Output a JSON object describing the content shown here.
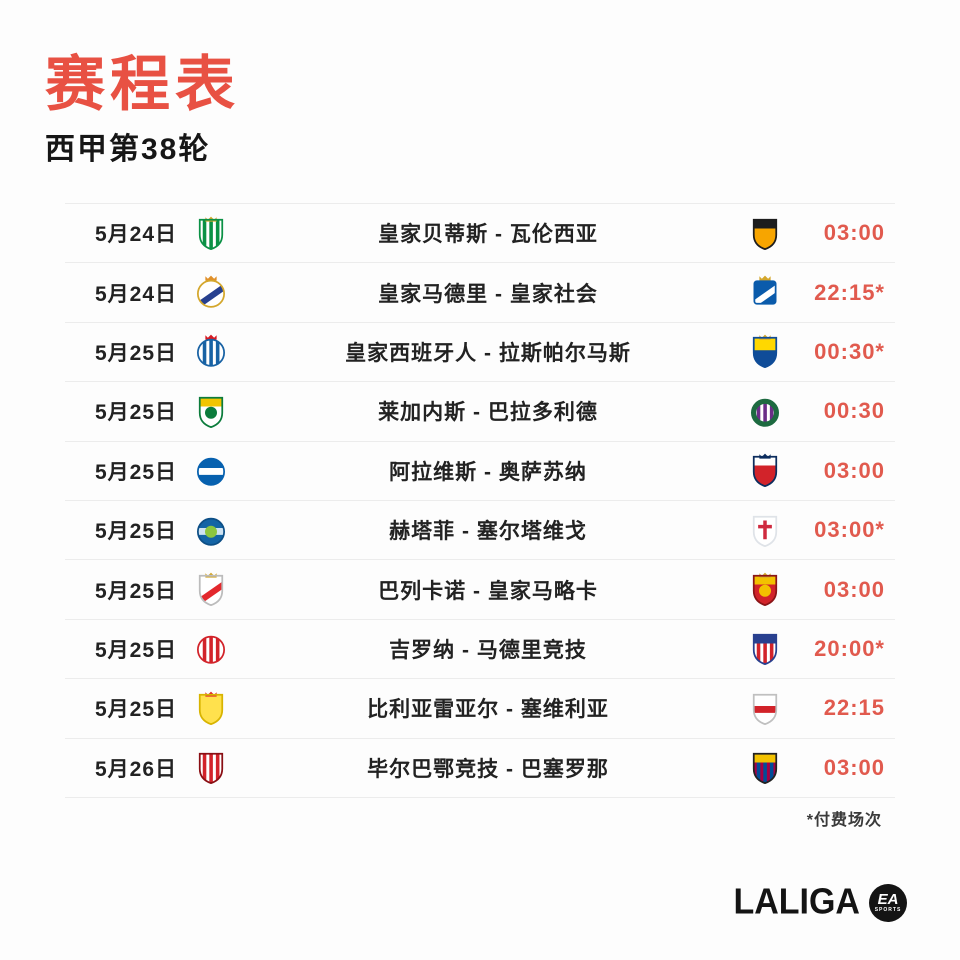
{
  "page": {
    "title": "赛程表",
    "subtitle": "西甲第38轮",
    "footnote": "*付费场次",
    "brand": {
      "laliga": "LALIGA",
      "ea_top": "EA",
      "ea_bottom": "SPORTS"
    },
    "colors": {
      "background": "#fdfdfd",
      "accent_red": "#e85143",
      "time_red": "#e15a4e",
      "text_dark": "#222222",
      "divider": "#ececec"
    }
  },
  "matches": [
    {
      "date": "5月24日",
      "fixture": "皇家贝蒂斯 - 瓦伦西亚",
      "time": "03:00",
      "home_crest": {
        "name": "real-betis-crest",
        "base": "shield",
        "base_color": "#ffffff",
        "border": "#0b9145",
        "layers": [
          [
            "vstripes",
            "#0b9145"
          ],
          [
            "crown",
            "#d4a72c"
          ]
        ]
      },
      "away_crest": {
        "name": "valencia-crest",
        "base": "shield",
        "base_color": "#f7a500",
        "border": "#1d1d1d",
        "layers": [
          [
            "chief",
            "#1d1d1d"
          ]
        ]
      }
    },
    {
      "date": "5月24日",
      "fixture": "皇家马德里 - 皇家社会",
      "time": "22:15*",
      "home_crest": {
        "name": "real-madrid-crest",
        "base": "circle",
        "base_color": "#ffffff",
        "border": "#d4a72c",
        "layers": [
          [
            "diag",
            "#27408f"
          ],
          [
            "crown",
            "#e0902a"
          ]
        ]
      },
      "away_crest": {
        "name": "real-sociedad-crest",
        "base": "flag",
        "base_color": "#0a5bab",
        "border": "#0a5bab",
        "layers": [
          [
            "diag",
            "#ffffff"
          ],
          [
            "crown",
            "#d4a72c"
          ]
        ]
      }
    },
    {
      "date": "5月25日",
      "fixture": "皇家西班牙人 - 拉斯帕尔马斯",
      "time": "00:30*",
      "home_crest": {
        "name": "espanyol-crest",
        "base": "circle",
        "base_color": "#ffffff",
        "border": "#1862a4",
        "layers": [
          [
            "vstripes",
            "#1862a4"
          ],
          [
            "crown",
            "#d61a22"
          ]
        ]
      },
      "away_crest": {
        "name": "las-palmas-crest",
        "base": "shield",
        "base_color": "#ffd800",
        "border": "#0f4c98",
        "layers": [
          [
            "skirt",
            "#0f4c98"
          ],
          [
            "crown",
            "#d4a72c"
          ]
        ]
      }
    },
    {
      "date": "5月25日",
      "fixture": "莱加内斯 - 巴拉多利德",
      "time": "00:30",
      "home_crest": {
        "name": "leganes-crest",
        "base": "shield",
        "base_color": "#ffffff",
        "border": "#0c7c3c",
        "layers": [
          [
            "chief",
            "#f2c500"
          ],
          [
            "dot",
            "#0c7c3c"
          ]
        ]
      },
      "away_crest": {
        "name": "valladolid-crest",
        "base": "circle",
        "base_color": "#ffffff",
        "border": "#1d6a40",
        "layers": [
          [
            "vstripes",
            "#6a2d87"
          ],
          [
            "ring",
            "#1d6a40"
          ]
        ]
      }
    },
    {
      "date": "5月25日",
      "fixture": "阿拉维斯 - 奥萨苏纳",
      "time": "03:00",
      "home_crest": {
        "name": "alaves-crest",
        "base": "circle",
        "base_color": "#0761af",
        "border": "#0761af",
        "layers": [
          [
            "hband",
            "#ffffff"
          ]
        ]
      },
      "away_crest": {
        "name": "osasuna-crest",
        "base": "shield",
        "base_color": "#d2232a",
        "border": "#0c2d5e",
        "layers": [
          [
            "chief",
            "#ffffff"
          ],
          [
            "crown",
            "#0c2d5e"
          ]
        ]
      }
    },
    {
      "date": "5月25日",
      "fixture": "赫塔菲 - 塞尔塔维戈",
      "time": "03:00*",
      "home_crest": {
        "name": "getafe-crest",
        "base": "circle",
        "base_color": "#1464a5",
        "border": "#0d4f86",
        "layers": [
          [
            "hband",
            "#cfe3f2"
          ],
          [
            "dot",
            "#8cc63f"
          ]
        ]
      },
      "away_crest": {
        "name": "celta-vigo-crest",
        "base": "shield",
        "base_color": "#ffffff",
        "border": "#dfe3e8",
        "layers": [
          [
            "cross",
            "#cf2a3f"
          ]
        ]
      }
    },
    {
      "date": "5月25日",
      "fixture": "巴列卡诺 - 皇家马略卡",
      "time": "03:00",
      "home_crest": {
        "name": "rayo-vallecano-crest",
        "base": "shield",
        "base_color": "#ffffff",
        "border": "#bcbcbc",
        "layers": [
          [
            "diag",
            "#e3282d"
          ],
          [
            "crown",
            "#d4a72c"
          ]
        ]
      },
      "away_crest": {
        "name": "mallorca-crest",
        "base": "shield",
        "base_color": "#d2232a",
        "border": "#8a1518",
        "layers": [
          [
            "chief",
            "#f3c200"
          ],
          [
            "dot",
            "#f3c200"
          ],
          [
            "crown",
            "#d4a72c"
          ]
        ]
      }
    },
    {
      "date": "5月25日",
      "fixture": "吉罗纳 - 马德里竞技",
      "time": "20:00*",
      "home_crest": {
        "name": "girona-crest",
        "base": "circle",
        "base_color": "#ffffff",
        "border": "#d2232a",
        "layers": [
          [
            "vstripes",
            "#d2232a"
          ]
        ]
      },
      "away_crest": {
        "name": "atletico-madrid-crest",
        "base": "shield",
        "base_color": "#ffffff",
        "border": "#28408f",
        "layers": [
          [
            "vstripes",
            "#d2232a"
          ],
          [
            "chief",
            "#28408f"
          ]
        ]
      }
    },
    {
      "date": "5月25日",
      "fixture": "比利亚雷亚尔 - 塞维利亚",
      "time": "22:15",
      "home_crest": {
        "name": "villarreal-crest",
        "base": "shield",
        "base_color": "#ffe14d",
        "border": "#d8b400",
        "layers": [
          [
            "crown",
            "#e3282d"
          ]
        ]
      },
      "away_crest": {
        "name": "sevilla-crest",
        "base": "shield",
        "base_color": "#ffffff",
        "border": "#c0c0c0",
        "layers": [
          [
            "hband",
            "#d2232a"
          ]
        ]
      }
    },
    {
      "date": "5月26日",
      "fixture": "毕尔巴鄂竞技 - 巴塞罗那",
      "time": "03:00",
      "home_crest": {
        "name": "athletic-bilbao-crest",
        "base": "shield",
        "base_color": "#ffffff",
        "border": "#8a0f14",
        "layers": [
          [
            "vstripes",
            "#d2232a"
          ]
        ]
      },
      "away_crest": {
        "name": "barcelona-crest",
        "base": "shield",
        "base_color": "#a50044",
        "border": "#222222",
        "layers": [
          [
            "vstripes",
            "#004d98"
          ],
          [
            "chief",
            "#f3c200"
          ]
        ]
      }
    }
  ]
}
